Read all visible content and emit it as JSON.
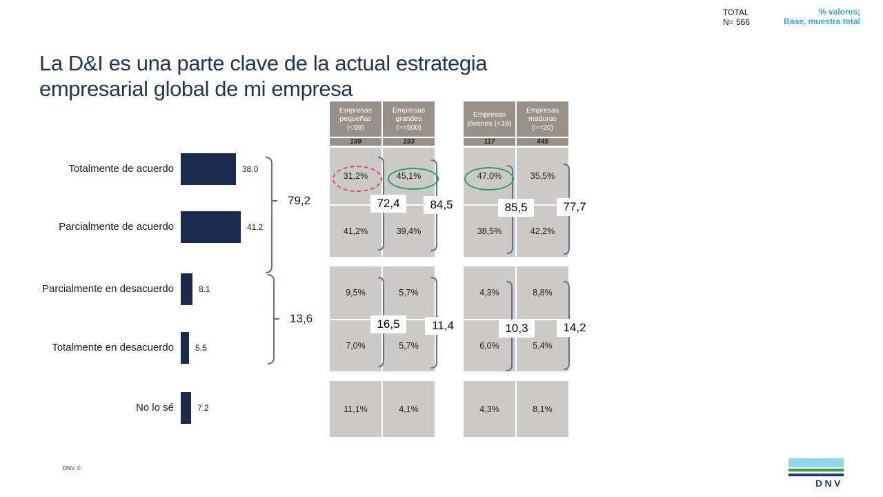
{
  "slide": {
    "title": "La D&I es una parte clave de la actual estrategia\nempresarial global de mi empresa",
    "total_label": "TOTAL",
    "total_n": "N= 566",
    "note_line1": "% valores;",
    "note_line2": "Base, muestra total",
    "footer": "DNV ©",
    "logo_text": "DNV"
  },
  "chart_data": {
    "type": "bar",
    "orientation": "horizontal",
    "title": "La D&I es una parte clave de la actual estrategia empresarial global de mi empresa",
    "categories": [
      "Totalmente de acuerdo",
      "Parcialmente de acuerdo",
      "Parcialmente en desacuerdo",
      "Totalmente en desacuerdo",
      "No lo sé"
    ],
    "values": [
      38.0,
      41.2,
      8.1,
      5.5,
      7.2
    ],
    "value_labels": [
      "38.0",
      "41.2",
      "8.1",
      "5.5",
      "7.2"
    ],
    "xlim": [
      0,
      45
    ],
    "grid": false,
    "brackets": [
      {
        "label": "79,2",
        "rows": [
          0,
          1
        ],
        "meaning": "total de acuerdo"
      },
      {
        "label": "13,6",
        "rows": [
          2,
          3
        ],
        "meaning": "total en desacuerdo"
      }
    ]
  },
  "tables": [
    {
      "name": "por tamaño de empresa",
      "columns": [
        {
          "header": "Empresas\npequeñas\n(<99)",
          "n": "199",
          "values": [
            "31,2%",
            "41,2%",
            "9,5%",
            "7,0%",
            "11,1%"
          ],
          "agree_total": "72,4",
          "disagree_total": "16,5",
          "highlight": {
            "row": 0,
            "style": "dashed-red"
          }
        },
        {
          "header": "Empresas\ngrandes\n(>=500)",
          "n": "193",
          "values": [
            "45,1%",
            "39,4%",
            "5,7%",
            "5,7%",
            "4,1%"
          ],
          "agree_total": "84,5",
          "disagree_total": "11,4",
          "highlight": {
            "row": 0,
            "style": "solid-green"
          }
        }
      ]
    },
    {
      "name": "por edad de empresa",
      "columns": [
        {
          "header": "Empresas\njóvenes (<19)",
          "n": "117",
          "values": [
            "47,0%",
            "38,5%",
            "4,3%",
            "6,0%",
            "4,3%"
          ],
          "agree_total": "85,5",
          "disagree_total": "10,3",
          "highlight": {
            "row": 0,
            "style": "solid-green"
          }
        },
        {
          "header": "Empresas\nmaduras\n(>=20)",
          "n": "445",
          "values": [
            "35,5%",
            "42,2%",
            "8,8%",
            "5,4%",
            "8,1%"
          ],
          "agree_total": "77,7",
          "disagree_total": "14,2",
          "highlight": null
        }
      ]
    }
  ],
  "colors": {
    "title_navy": "#1F3456",
    "bar_navy": "#1B2B4D",
    "header_taupe": "#98908A",
    "cell_gray": "#CBCAC8",
    "bracket_slate": "#5F6F8E",
    "highlight_red": "#E14B4E",
    "highlight_green": "#27A25B",
    "note_teal": "#2BA7DB",
    "logo_sky": "#93D5F0",
    "logo_green": "#3F9C35",
    "logo_blue": "#1B3C6E"
  }
}
